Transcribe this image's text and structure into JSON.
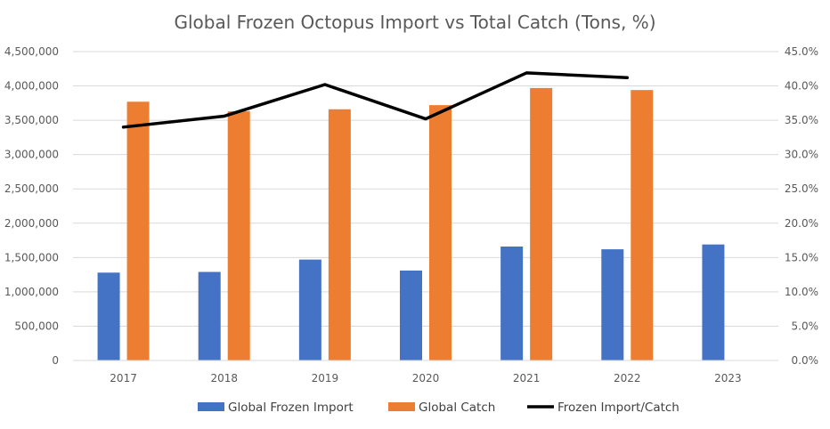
{
  "chart_data": {
    "type": "bar",
    "title": "Global Frozen Octopus Import vs Total Catch (Tons, %)",
    "categories": [
      "2017",
      "2018",
      "2019",
      "2020",
      "2021",
      "2022",
      "2023"
    ],
    "series": [
      {
        "name": "Global Frozen Import",
        "type": "bar",
        "axis": "left",
        "color": "#4472C4",
        "values": [
          1280000,
          1290000,
          1470000,
          1310000,
          1660000,
          1620000,
          1690000
        ]
      },
      {
        "name": "Global Catch",
        "type": "bar",
        "axis": "left",
        "color": "#ED7D31",
        "values": [
          3770000,
          3630000,
          3660000,
          3720000,
          3970000,
          3940000,
          null
        ]
      },
      {
        "name": "Frozen Import/Catch",
        "type": "line",
        "axis": "right",
        "color": "#000000",
        "values": [
          34.0,
          35.6,
          40.2,
          35.2,
          41.9,
          41.2,
          null
        ]
      }
    ],
    "y_left": {
      "ylim": [
        0,
        4500000
      ],
      "ticks": [
        0,
        500000,
        1000000,
        1500000,
        2000000,
        2500000,
        3000000,
        3500000,
        4000000,
        4500000
      ],
      "tick_labels": [
        "0",
        "500,000",
        "1,000,000",
        "1,500,000",
        "2,000,000",
        "2,500,000",
        "3,000,000",
        "3,500,000",
        "4,000,000",
        "4,500,000"
      ]
    },
    "y_right": {
      "ylim": [
        0,
        45
      ],
      "ticks": [
        0,
        5,
        10,
        15,
        20,
        25,
        30,
        35,
        40,
        45
      ],
      "tick_labels": [
        "0.0%",
        "5.0%",
        "10.0%",
        "15.0%",
        "20.0%",
        "25.0%",
        "30.0%",
        "35.0%",
        "40.0%",
        "45.0%"
      ]
    },
    "grid": true,
    "legend_position": "bottom"
  }
}
